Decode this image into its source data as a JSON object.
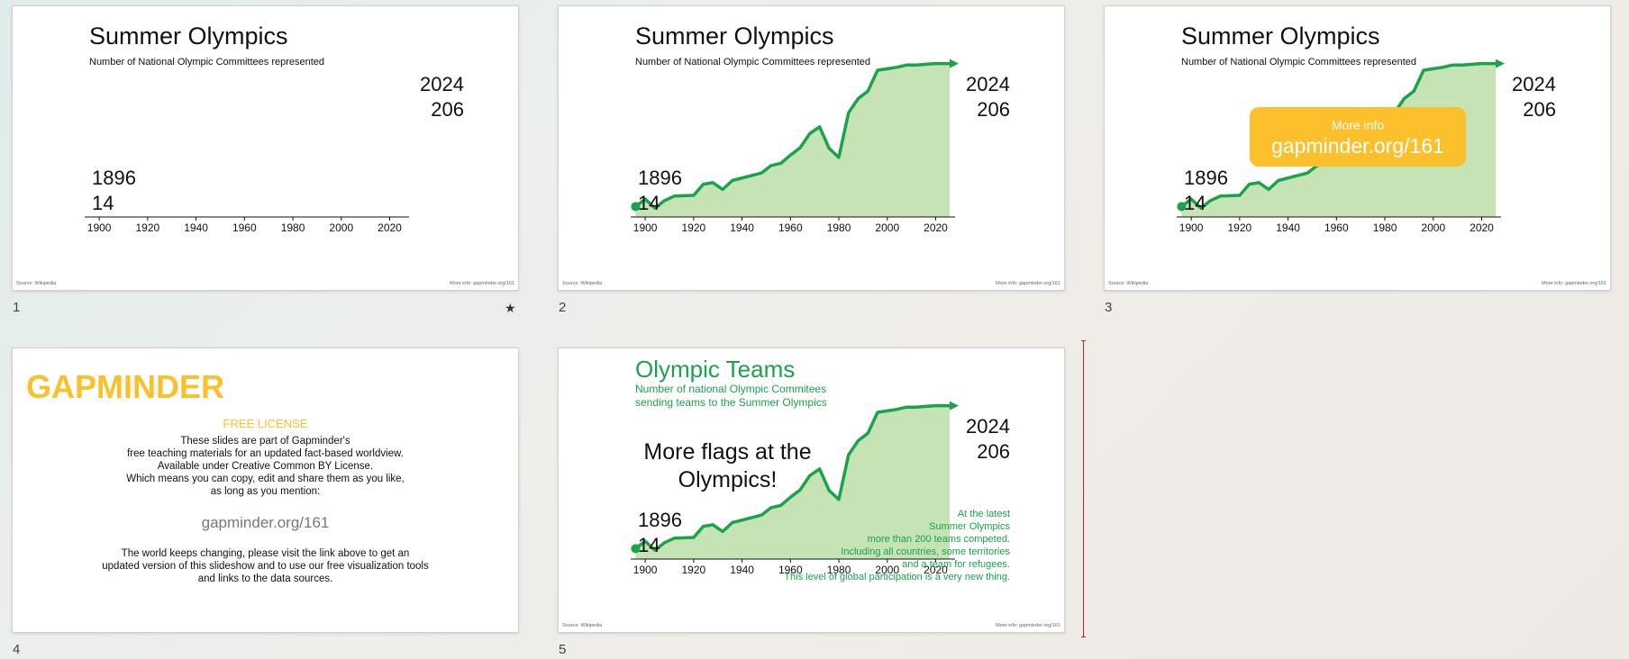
{
  "colors": {
    "green": "#1aa34a",
    "area": "#c6e3b5",
    "yellow": "#fcc02d",
    "cursor": "#c62828"
  },
  "slide_numbers": [
    "1",
    "2",
    "3",
    "4",
    "5"
  ],
  "chart": {
    "title": "Summer Olympics",
    "subtitle": "Number of National Olympic Committees represented",
    "start_year": "1896",
    "start_value": "14",
    "end_year": "2024",
    "end_value": "206",
    "source": "Source: Wikipedia",
    "more_info": "More info: gapminder.org/161"
  },
  "info_box": {
    "small": "More info",
    "big": "gapminder.org/161"
  },
  "license_slide": {
    "logo": "GAPMINDER",
    "free_license": "FREE LICENSE",
    "body": [
      "These slides are part of Gapminder's",
      "free teaching materials for an updated fact-based worldview.",
      "Available under Creative Common BY License.",
      "Which means you can copy, edit and share them as you like,",
      "as long as you mention:"
    ],
    "link": "gapminder.org/161",
    "body2": [
      "The world keeps changing, please visit the link above to get an",
      "updated version of this slideshow and to use our free visualization tools",
      "and links to the data sources."
    ]
  },
  "teams_slide": {
    "title": "Olympic Teams",
    "subtitle": [
      "Number of national Olympic Commitees",
      "sending teams to the Summer Olympics"
    ],
    "callout": "More flags at the Olympics!",
    "note": [
      "At the latest",
      "Summer Olympics",
      "more than 200 teams competed.",
      "Including all countries, some territories",
      "and a team for refugees.",
      "This level of global participation is a very new thing."
    ]
  },
  "chart_data": {
    "type": "area",
    "title": "Summer Olympics",
    "subtitle": "Number of National Olympic Committees represented",
    "xlabel": "",
    "ylabel": "",
    "xlim": [
      1894,
      2028
    ],
    "ylim": [
      0,
      220
    ],
    "xticks": [
      1900,
      1920,
      1940,
      1960,
      1980,
      2000,
      2020
    ],
    "x": [
      1896,
      1900,
      1904,
      1908,
      1912,
      1920,
      1924,
      1928,
      1932,
      1936,
      1948,
      1952,
      1956,
      1960,
      1964,
      1968,
      1972,
      1976,
      1980,
      1984,
      1988,
      1992,
      1996,
      2000,
      2004,
      2008,
      2012,
      2016,
      2020,
      2024
    ],
    "values": [
      14,
      24,
      12,
      22,
      28,
      29,
      44,
      46,
      37,
      49,
      59,
      69,
      72,
      83,
      93,
      112,
      121,
      92,
      80,
      140,
      159,
      169,
      197,
      199,
      201,
      204,
      204,
      205,
      206,
      206
    ]
  }
}
